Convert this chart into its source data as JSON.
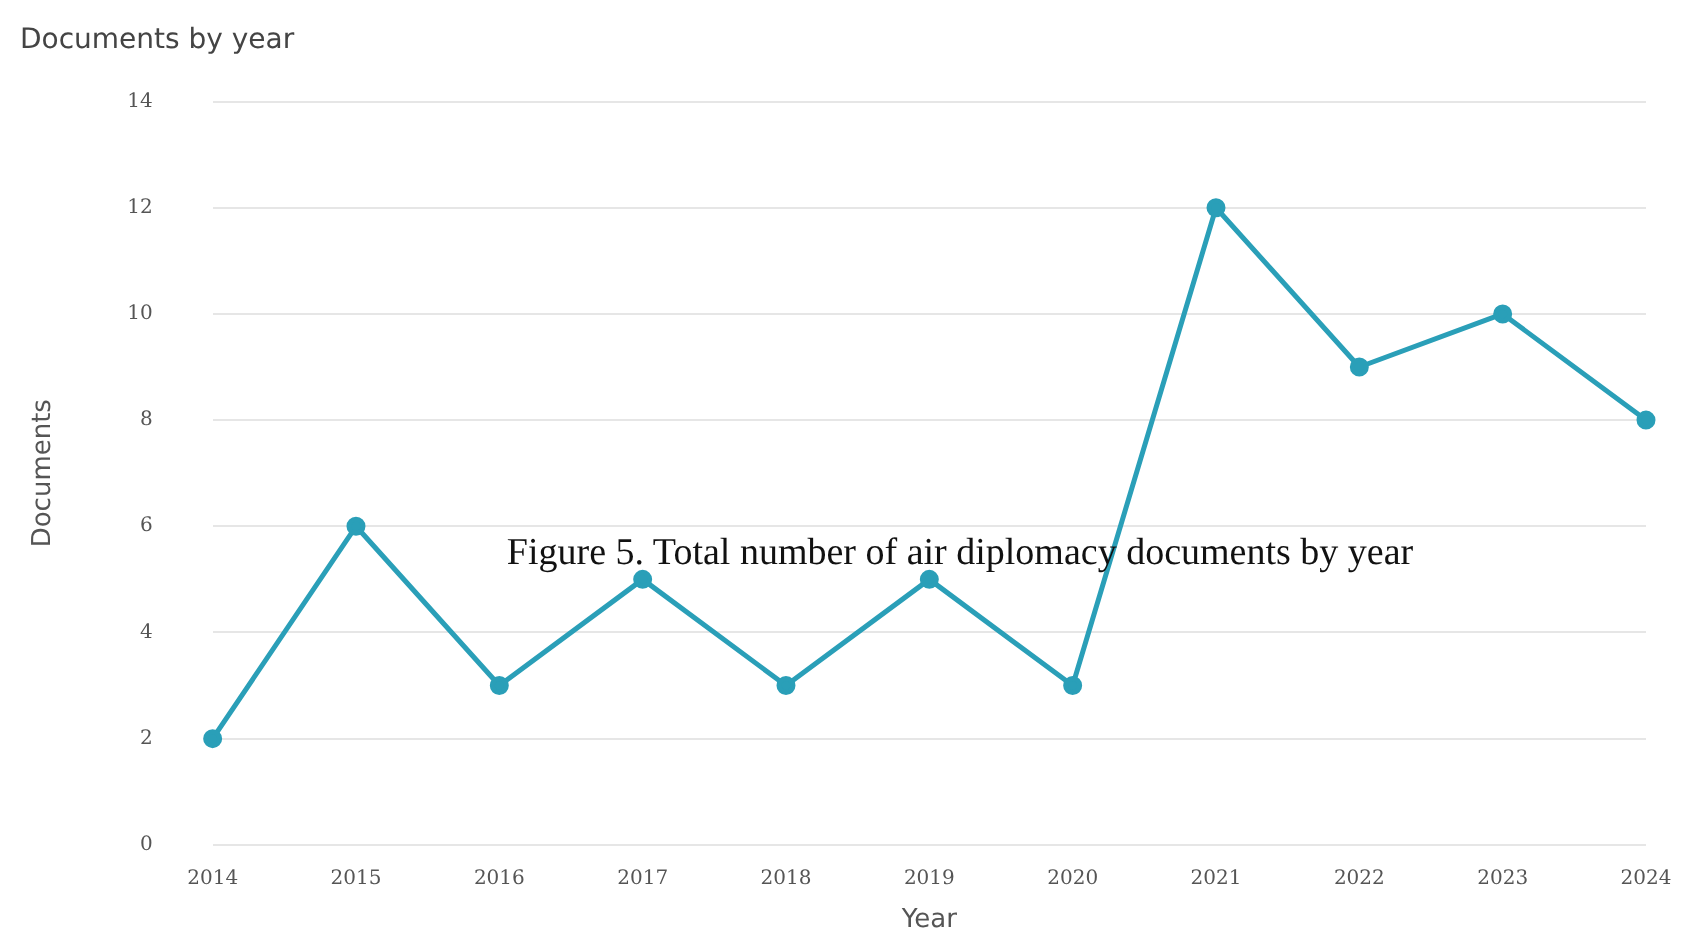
{
  "chart_data": {
    "type": "line",
    "title": "Documents by year",
    "xlabel": "Year",
    "ylabel": "Documents",
    "categories": [
      "2014",
      "2015",
      "2016",
      "2017",
      "2018",
      "2019",
      "2020",
      "2021",
      "2022",
      "2023",
      "2024"
    ],
    "series": [
      {
        "color": "#2a9fb8",
        "values": [
          2,
          6,
          3,
          5,
          3,
          5,
          3,
          12,
          9,
          10,
          8
        ]
      }
    ],
    "ylim": [
      0,
      14
    ],
    "yticks": [
      0,
      2,
      4,
      6,
      8,
      10,
      12,
      14
    ],
    "grid": "y",
    "legend": false,
    "marker": "circle",
    "line_style": "solid",
    "annotations": [
      "Figure 5. Total number of air diplomacy documents by year"
    ]
  }
}
